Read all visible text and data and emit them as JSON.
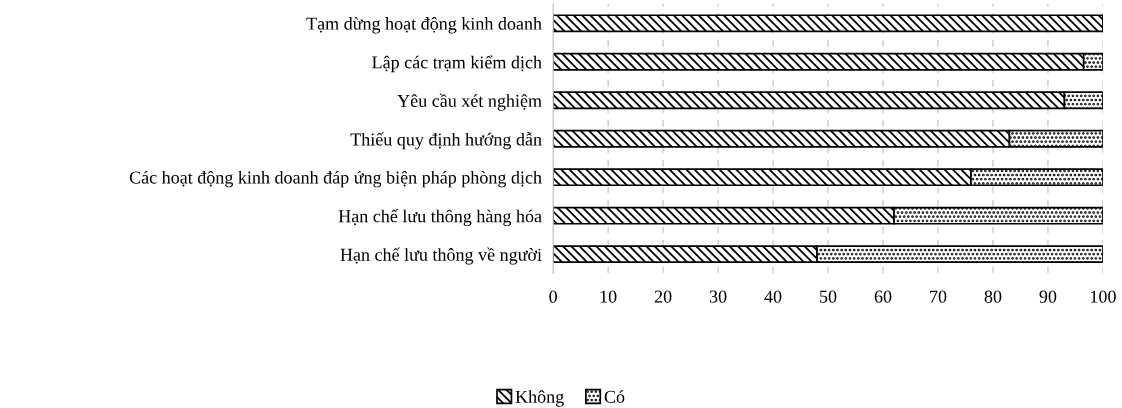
{
  "chart_data": {
    "type": "bar",
    "orientation": "horizontal",
    "stacked": true,
    "categories": [
      "Tạm dừng hoạt động kinh doanh",
      "Lập các trạm kiểm dịch",
      "Yêu cầu xét nghiệm",
      "Thiếu quy định hướng dẫn",
      "Các hoạt động kinh doanh đáp ứng biện pháp phòng dịch",
      "Hạn chế lưu thông hàng hóa",
      "Hạn chế lưu thông về người"
    ],
    "series": [
      {
        "name": "Không",
        "color": "#000000",
        "values": [
          100,
          96.5,
          93,
          83,
          76,
          62,
          48
        ]
      },
      {
        "name": "Có",
        "color": "#000000",
        "values": [
          0,
          3.5,
          7,
          17,
          24,
          38,
          52
        ]
      }
    ],
    "xlim": [
      0,
      100
    ],
    "xticks": [
      0,
      10,
      20,
      30,
      40,
      50,
      60,
      70,
      80,
      90,
      100
    ],
    "grid": "x",
    "legend": "bottom"
  }
}
